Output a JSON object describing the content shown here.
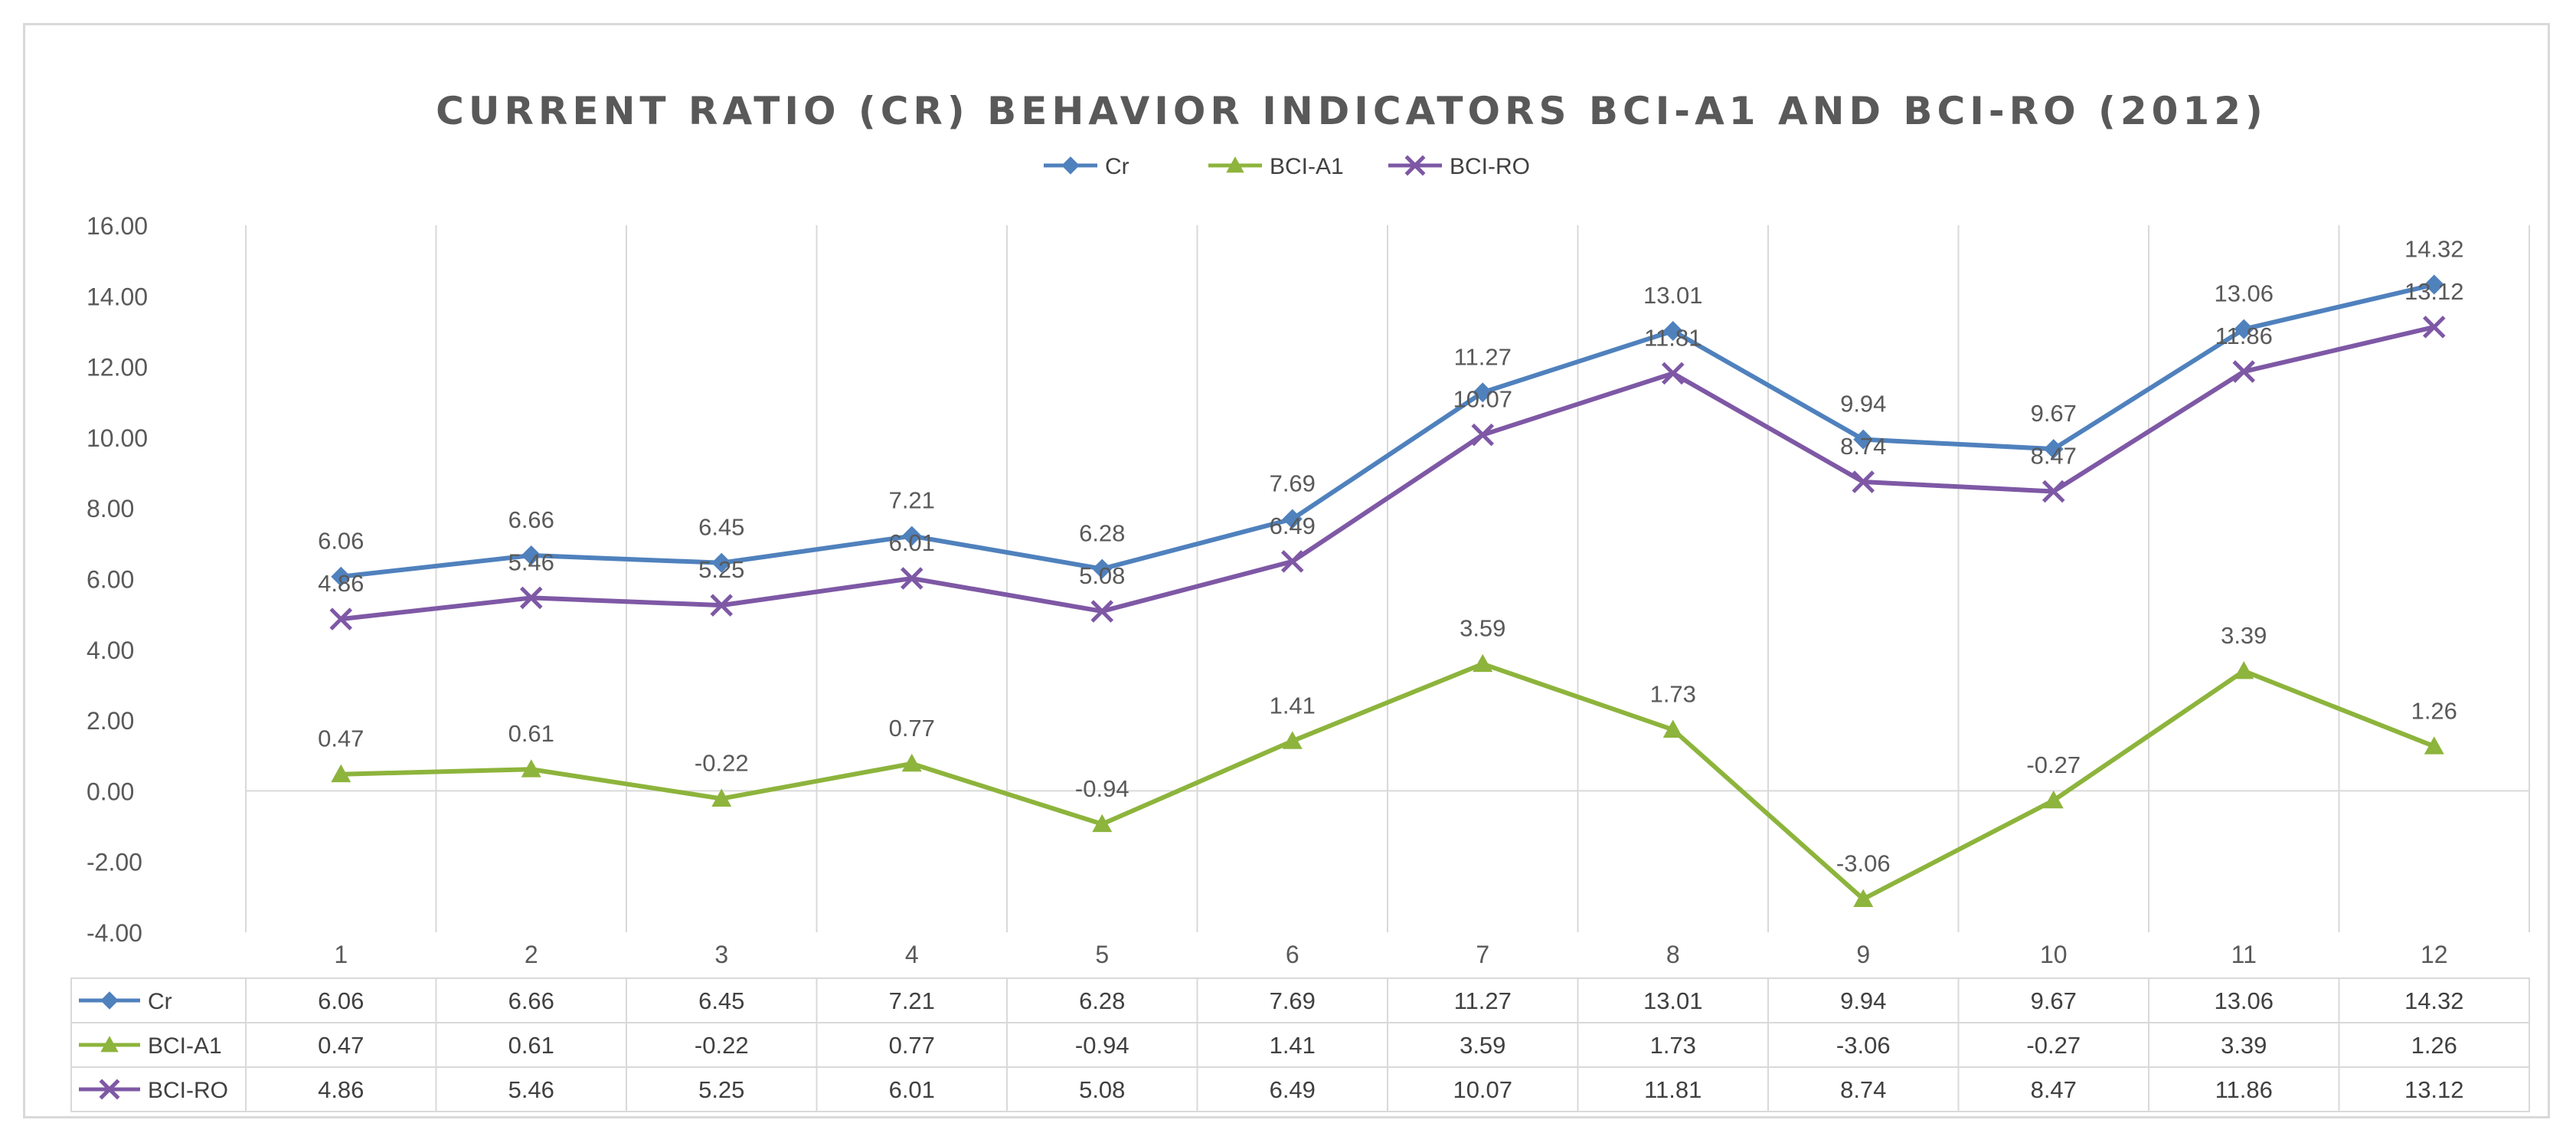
{
  "chart_data": {
    "type": "line",
    "title": "CURRENT RATIO (CR) BEHAVIOR INDICATORS BCI-A1 AND BCI-RO (2012)",
    "categories": [
      "1",
      "2",
      "3",
      "4",
      "5",
      "6",
      "7",
      "8",
      "9",
      "10",
      "11",
      "12"
    ],
    "ylim": [
      -4,
      16
    ],
    "y_step": 2,
    "y_tick_labels": [
      "16.00",
      "14.00",
      "12.00",
      "10.00",
      "8.00",
      "6.00",
      "4.00",
      "2.00",
      "0.00",
      "-2.00",
      "-4.00"
    ],
    "grid": "vertical",
    "legend_position": "top",
    "data_table": true,
    "series": [
      {
        "name": "Cr",
        "color": "#4F81BD",
        "marker": "diamond",
        "values": [
          6.06,
          6.66,
          6.45,
          7.21,
          6.28,
          7.69,
          11.27,
          13.01,
          9.94,
          9.67,
          13.06,
          14.32
        ],
        "labels": [
          "6.06",
          "6.66",
          "6.45",
          "7.21",
          "6.28",
          "7.69",
          "11.27",
          "13.01",
          "9.94",
          "9.67",
          "13.06",
          "14.32"
        ]
      },
      {
        "name": "BCI-A1",
        "color": "#8DB43C",
        "marker": "triangle",
        "values": [
          0.47,
          0.61,
          -0.22,
          0.77,
          -0.94,
          1.41,
          3.59,
          1.73,
          -3.06,
          -0.27,
          3.39,
          1.26
        ],
        "labels": [
          "0.47",
          "0.61",
          "-0.22",
          "0.77",
          "-0.94",
          "1.41",
          "3.59",
          "1.73",
          "-3.06",
          "-0.27",
          "3.39",
          "1.26"
        ]
      },
      {
        "name": "BCI-RO",
        "color": "#7E58A5",
        "marker": "x",
        "values": [
          4.86,
          5.46,
          5.25,
          6.01,
          5.08,
          6.49,
          10.07,
          11.81,
          8.74,
          8.47,
          11.86,
          13.12
        ],
        "labels": [
          "4.86",
          "5.46",
          "5.25",
          "6.01",
          "5.08",
          "6.49",
          "10.07",
          "11.81",
          "8.74",
          "8.47",
          "11.86",
          "13.12"
        ]
      }
    ]
  }
}
